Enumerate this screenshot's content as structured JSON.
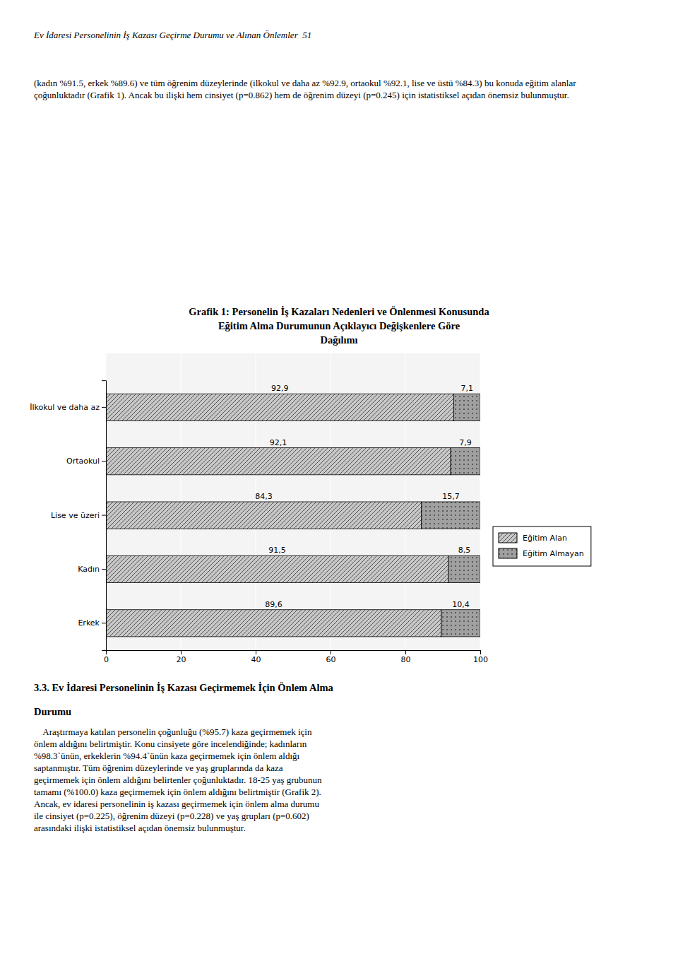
{
  "chart_data": {
    "type": "bar",
    "orientation": "horizontal",
    "stacked": true,
    "title": "Grafik 1: Personelin İş Kazaları Nedenleri ve Önlenmesi Konusunda\nEğitim Alma Durumunun Açıklayıcı Değişkenlere Göre\nDağılımı",
    "categories": [
      "Erkek",
      "Kadın",
      "Lise ve üzeri",
      "Ortaokul",
      "İlkokul ve daha az"
    ],
    "series": [
      {
        "name": "Eğitim Alan",
        "color": "#c8c8c8",
        "values": [
          89.6,
          91.5,
          84.3,
          92.1,
          92.9
        ],
        "value_labels": [
          "89,6",
          "91,5",
          "84,3",
          "92,1",
          "92,9"
        ]
      },
      {
        "name": "Eğitim Almayan",
        "color": "#a0a0a0",
        "values": [
          10.4,
          8.5,
          15.7,
          7.9,
          7.1
        ],
        "value_labels": [
          "10,4",
          "8,5",
          "15,7",
          "7,9",
          "7,1"
        ]
      }
    ],
    "xlim": [
      0,
      100
    ],
    "xticks": [
      0,
      20,
      40,
      60,
      80,
      100
    ],
    "grid": true,
    "legend": "right",
    "data_labels": true,
    "annotations": [
      "Ev İdaresi Personelinin İş Kazası Geçirme Durumu ve Alınan Önlemler  51",
      "(kadın %91.5, erkek %89.6) ve tüm öğrenim düzeylerinde (ilkokul ve daha az %92.9, ortaokul %92.1, lise ve üstü %84.3) bu konuda eğitim alanlar\nçoğunluktadır (Grafik 1). Ancak bu ilişki hem cinsiyet (p=0.862) hem de öğrenim düzeyi (p=0.245) için istatistiksel açıdan önemsiz bulunmuştur.",
      "3.3. Ev İdaresi Personelinin İş Kazası Geçirmemek İçin Önlem Alma",
      "Durumu",
      "    Araştırmaya katılan personelin çoğunluğu (%95.7) kaza geçirmemek için\nönlem aldığını belirtmiştir. Konu cinsiyete göre incelendiğinde; kadınların\n%98.3`ünün, erkeklerin %94.4`ünün kaza geçirmemek için önlem aldığı\nsaptanmıştır. Tüm öğrenim düzeylerinde ve yaş gruplarında da kaza\ngeçirmemek için önlem aldığını belirtenler çoğunluktadır. 18-25 yaş grubunun\ntamamı (%100.0) kaza geçirmemek için önlem aldığını belirtmiştir (Grafik 2).\nAncak, ev idaresi personelinin iş kazası geçirmemek için önlem alma durumu\nile cinsiyet (p=0.225), öğrenim düzeyi (p=0.228) ve yaş grupları (p=0.602)\narasındaki ilişki istatistiksel açıdan önemsiz bulunmuştur."
    ]
  }
}
